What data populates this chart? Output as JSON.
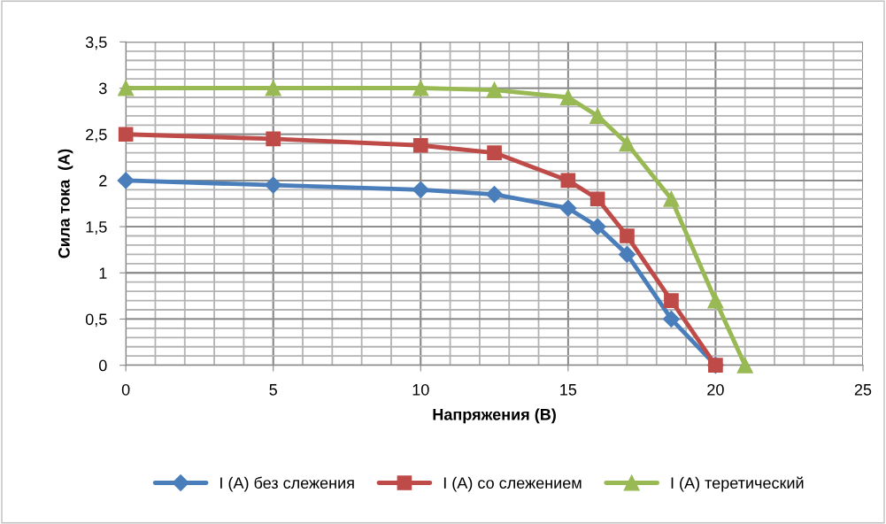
{
  "chart_data": {
    "type": "line",
    "xlabel": "Напряжения (В)",
    "ylabel": "Сила тока  (А)",
    "xlim": [
      0,
      25
    ],
    "xticks": [
      0,
      5,
      10,
      15,
      20,
      25
    ],
    "ylim": [
      0,
      3.5
    ],
    "yticks": [
      0,
      {
        "value": 0.5,
        "label": "0,5"
      },
      1,
      {
        "value": 1.5,
        "label": "1,5"
      },
      2,
      {
        "value": 2.5,
        "label": "2,5"
      },
      3,
      {
        "value": 3.5,
        "label": "3,5"
      }
    ],
    "grid": true,
    "legend": "bottom",
    "line_style": "solid",
    "series": [
      {
        "name": "I (A) без слежения",
        "color": "#4a7ebb",
        "marker": "diamond",
        "x": [
          0,
          5,
          10,
          12.5,
          15,
          16,
          17,
          18.5,
          20
        ],
        "values": [
          2,
          1.95,
          1.9,
          1.85,
          1.7,
          1.5,
          1.2,
          0.5,
          0
        ]
      },
      {
        "name": "I (A) со слежением",
        "color": "#be4b48",
        "marker": "square",
        "x": [
          0,
          5,
          10,
          12.5,
          15,
          16,
          17,
          18.5,
          20
        ],
        "values": [
          2.5,
          2.45,
          2.38,
          2.3,
          2.0,
          1.8,
          1.4,
          0.7,
          0
        ]
      },
      {
        "name": "I (A) теретический",
        "color": "#98b954",
        "marker": "triangle",
        "x": [
          0,
          5,
          10,
          12.5,
          15,
          16,
          17,
          18.5,
          20,
          21
        ],
        "values": [
          3,
          3,
          3,
          2.98,
          2.9,
          2.7,
          2.4,
          1.8,
          0.7,
          0
        ]
      }
    ]
  }
}
